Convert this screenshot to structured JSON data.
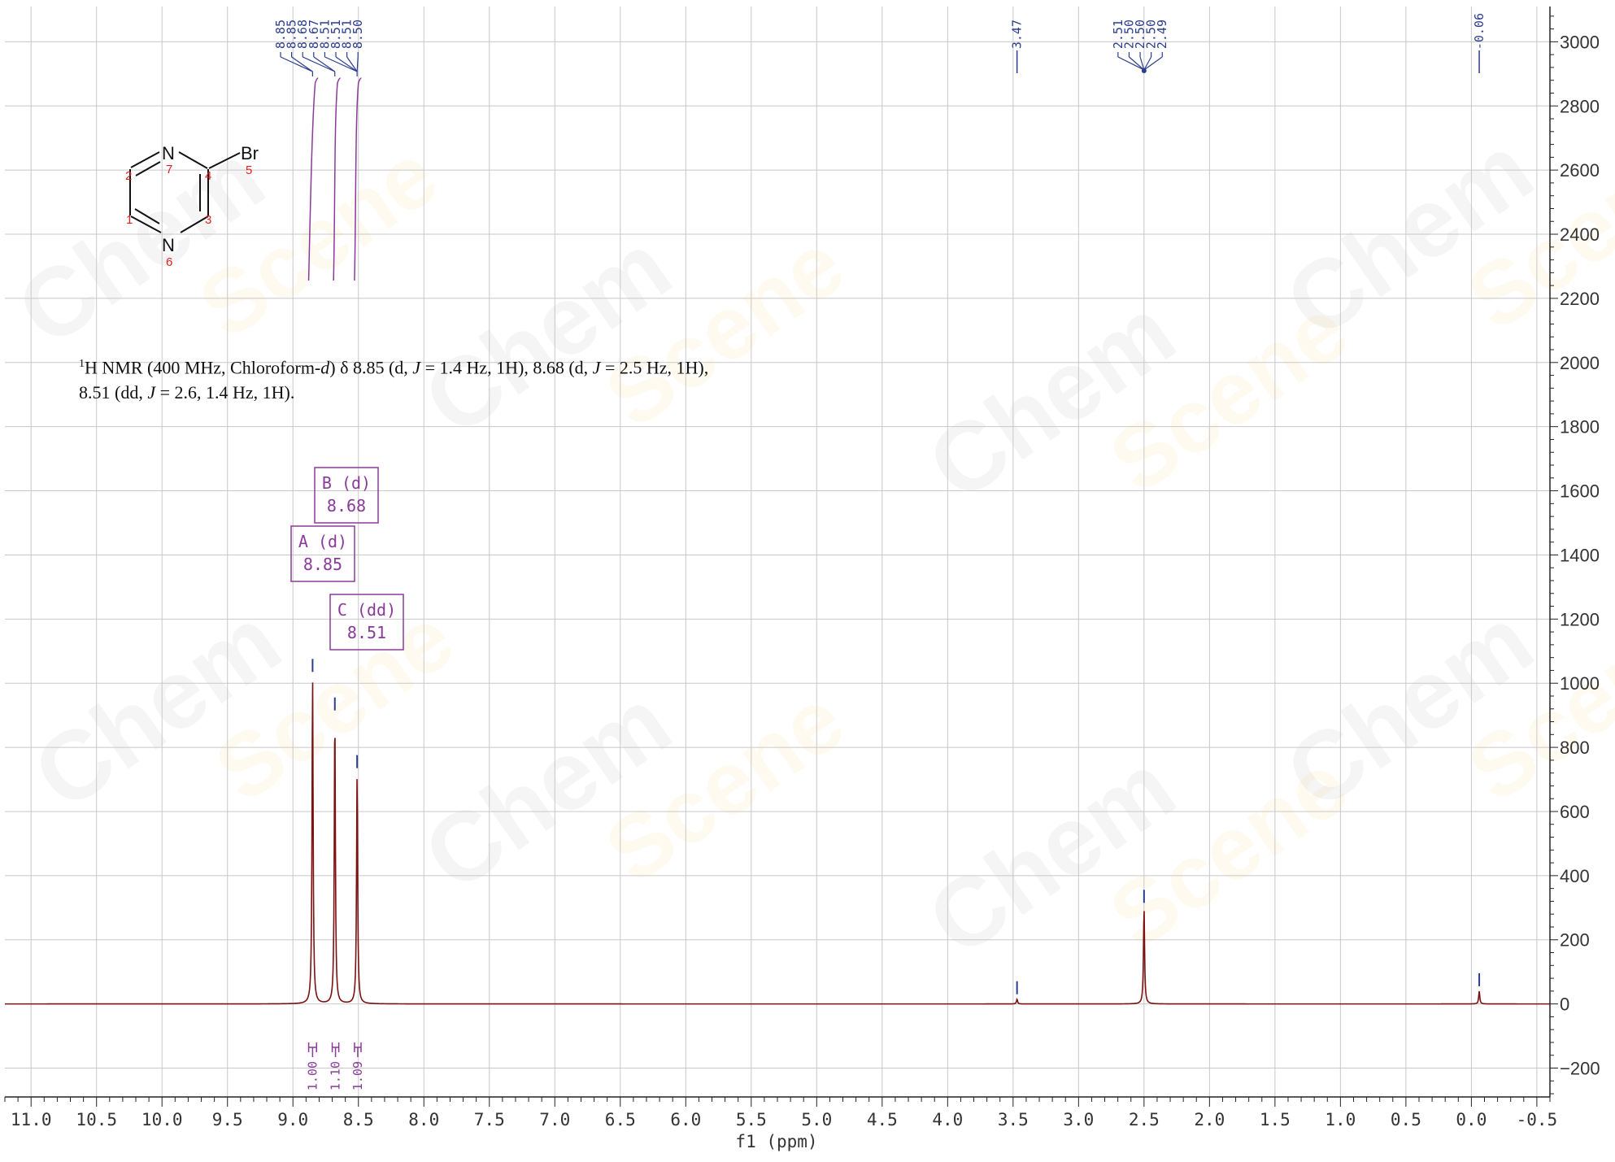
{
  "chart_data": {
    "type": "line",
    "xlabel": "f1 (ppm)",
    "ylabel": "",
    "xlim": [
      11.2,
      -0.6
    ],
    "ylim": [
      -290,
      3110
    ],
    "x_ticks": [
      "11.0",
      "10.5",
      "10.0",
      "9.5",
      "9.0",
      "8.5",
      "8.0",
      "7.5",
      "7.0",
      "6.5",
      "6.0",
      "5.5",
      "5.0",
      "4.5",
      "4.0",
      "3.5",
      "3.0",
      "2.5",
      "2.0",
      "1.5",
      "1.0",
      "0.5",
      "0.0",
      "-0.5"
    ],
    "y_ticks": [
      "3000",
      "2800",
      "2600",
      "2400",
      "2200",
      "2000",
      "1800",
      "1600",
      "1400",
      "1200",
      "1000",
      "800",
      "600",
      "400",
      "200",
      "0",
      "-200"
    ],
    "grid": true,
    "series": [
      {
        "color": "#7a1212",
        "peaks": [
          {
            "ppm": 8.85,
            "height": 1020
          },
          {
            "ppm": 8.68,
            "height": 900
          },
          {
            "ppm": 8.51,
            "height": 720
          },
          {
            "ppm": 3.47,
            "height": 15
          },
          {
            "ppm": 2.5,
            "height": 300
          },
          {
            "ppm": -0.06,
            "height": 40
          }
        ]
      }
    ],
    "peak_labels_left": [
      "8.85",
      "8.85",
      "8.68",
      "8.67",
      "8.51",
      "8.51",
      "8.51",
      "8.50"
    ],
    "peak_label_single_1": "3.47",
    "peak_labels_solvent": [
      "2.51",
      "2.50",
      "2.50",
      "2.50",
      "2.49"
    ],
    "peak_label_single_2": "-0.06",
    "multiplets": [
      {
        "label": "B (d)",
        "value": "8.68"
      },
      {
        "label": "A (d)",
        "value": "8.85"
      },
      {
        "label": "C (dd)",
        "value": "8.51"
      }
    ],
    "integrals": [
      "1.00",
      "1.10",
      "1.09"
    ]
  },
  "structure": {
    "atoms": {
      "n_top": "N",
      "n_bottom": "N",
      "br": "Br"
    },
    "numbers": [
      "1",
      "2",
      "3",
      "4",
      "5",
      "6",
      "7"
    ]
  },
  "description": {
    "nucleus_sup": "1",
    "line1_a": "H NMR (400 MHz, Chloroform-",
    "line1_d": "d",
    "line1_b": ") δ 8.85 (d, ",
    "j": "J",
    "line1_c": " = 1.4 Hz, 1H), 8.68 (d, ",
    "line1_e": " = 2.5 Hz, 1H),",
    "line2_a": "8.51 (dd, ",
    "line2_b": " = 2.6, 1.4 Hz, 1H)."
  },
  "colors": {
    "spectrum": "#7a1212",
    "peak_marker": "#2b3d8f",
    "annotation": "#8a3a9a",
    "grid": "#c8c8c8"
  }
}
